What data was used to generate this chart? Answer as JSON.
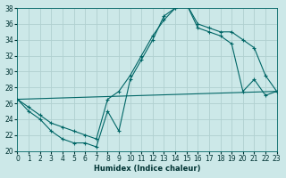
{
  "xlabel": "Humidex (Indice chaleur)",
  "xlim": [
    0,
    23
  ],
  "ylim": [
    20,
    38
  ],
  "yticks": [
    20,
    22,
    24,
    26,
    28,
    30,
    32,
    34,
    36,
    38
  ],
  "xticks": [
    0,
    1,
    2,
    3,
    4,
    5,
    6,
    7,
    8,
    9,
    10,
    11,
    12,
    13,
    14,
    15,
    16,
    17,
    18,
    19,
    20,
    21,
    22,
    23
  ],
  "bg_color": "#cce8e8",
  "line_color": "#006666",
  "grid_color": "#b0d0d0",
  "line1_x": [
    0,
    1,
    2,
    3,
    4,
    5,
    6,
    7,
    8,
    9,
    10,
    11,
    12,
    13,
    14,
    15,
    16,
    17,
    18,
    19,
    20,
    21,
    22,
    23
  ],
  "line1_y": [
    26.5,
    25.0,
    24.0,
    22.5,
    21.5,
    21.0,
    21.0,
    20.5,
    25.0,
    22.5,
    29.0,
    31.5,
    34.0,
    37.0,
    38.0,
    38.5,
    35.5,
    35.0,
    34.5,
    33.5,
    27.5,
    29.0,
    27.0,
    27.5
  ],
  "line2_x": [
    0,
    1,
    2,
    3,
    4,
    5,
    6,
    7,
    8,
    9,
    10,
    11,
    12,
    13,
    14,
    15,
    16,
    17,
    18,
    19,
    20,
    21,
    22,
    23
  ],
  "line2_y": [
    26.5,
    25.5,
    24.5,
    23.5,
    23.0,
    22.5,
    22.0,
    21.5,
    26.5,
    27.5,
    29.5,
    32.0,
    34.5,
    36.5,
    38.0,
    38.5,
    36.0,
    35.5,
    35.0,
    35.0,
    34.0,
    33.0,
    29.5,
    27.5
  ],
  "line3_x": [
    0,
    23
  ],
  "line3_y": [
    26.5,
    27.5
  ]
}
